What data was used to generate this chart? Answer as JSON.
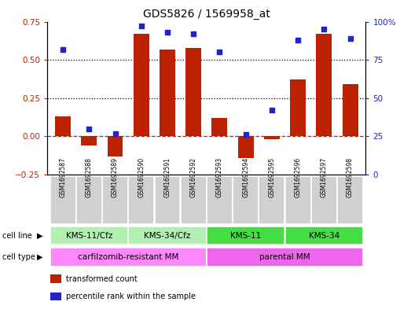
{
  "title": "GDS5826 / 1569958_at",
  "samples": [
    "GSM1692587",
    "GSM1692588",
    "GSM1692589",
    "GSM1692590",
    "GSM1692591",
    "GSM1692592",
    "GSM1692593",
    "GSM1692594",
    "GSM1692595",
    "GSM1692596",
    "GSM1692597",
    "GSM1692598"
  ],
  "transformed_count": [
    0.13,
    -0.06,
    -0.13,
    0.67,
    0.57,
    0.58,
    0.12,
    -0.14,
    -0.02,
    0.37,
    0.67,
    0.34
  ],
  "percentile_rank": [
    82,
    30,
    27,
    97,
    93,
    92,
    80,
    26,
    42,
    88,
    95,
    89
  ],
  "cell_line_groups": [
    {
      "label": "KMS-11/Cfz",
      "start": 0,
      "end": 3,
      "color": "#b0f0b0"
    },
    {
      "label": "KMS-34/Cfz",
      "start": 3,
      "end": 6,
      "color": "#b0f0b0"
    },
    {
      "label": "KMS-11",
      "start": 6,
      "end": 9,
      "color": "#44dd44"
    },
    {
      "label": "KMS-34",
      "start": 9,
      "end": 12,
      "color": "#44dd44"
    }
  ],
  "cell_type_groups": [
    {
      "label": "carfilzomib-resistant MM",
      "start": 0,
      "end": 6,
      "color": "#ff88ff"
    },
    {
      "label": "parental MM",
      "start": 6,
      "end": 12,
      "color": "#ee66ee"
    }
  ],
  "bar_color": "#bb2200",
  "dot_color": "#2222cc",
  "ylim_left": [
    -0.25,
    0.75
  ],
  "ylim_right": [
    0,
    100
  ],
  "yticks_left": [
    -0.25,
    0.0,
    0.25,
    0.5,
    0.75
  ],
  "yticks_right": [
    0,
    25,
    50,
    75,
    100
  ],
  "hline_y": 0.0,
  "dotted_lines": [
    0.25,
    0.5
  ],
  "sample_box_color": "#d0d0d0",
  "legend_items": [
    {
      "label": "transformed count",
      "color": "#bb2200"
    },
    {
      "label": "percentile rank within the sample",
      "color": "#2222cc"
    }
  ]
}
